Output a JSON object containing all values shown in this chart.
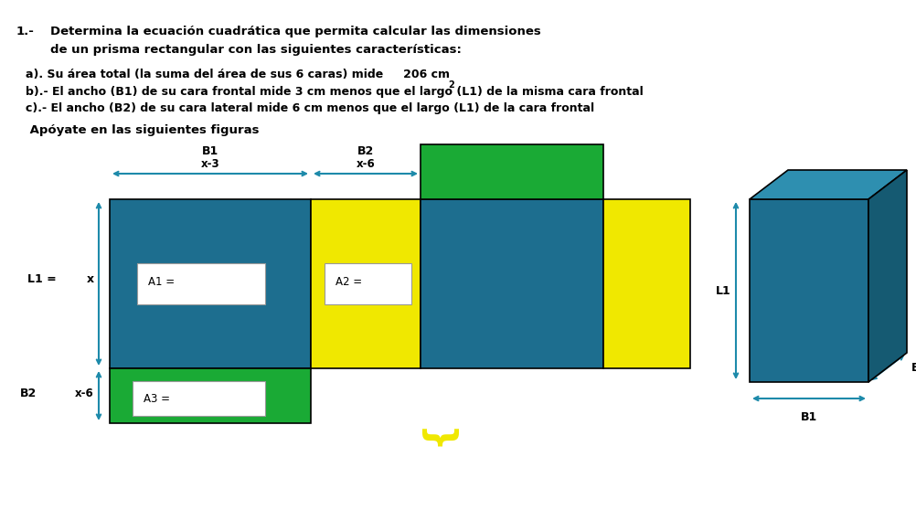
{
  "title_line1": "1.-    Determina la ecuación cuadrática que permita calcular las dimensiones",
  "title_line2": "        de un prisma rectangular con las siguientes características:",
  "line_a_main": "a). Su área total (la suma del área de sus 6 caras) mide     206 cm",
  "line_b": "b).- El ancho (B1) de su cara frontal mide 3 cm menos que el largo (L1) de la misma cara frontal",
  "line_c": "c).- El ancho (B2) de su cara lateral mide 6 cm menos que el largo (L1) de la cara frontal",
  "line_d": " Apóyate en las siguientes figuras",
  "color_teal": "#1d6e8f",
  "color_yellow": "#f0e800",
  "color_green": "#1aaa35",
  "color_white": "#ffffff",
  "color_black": "#000000",
  "bg_color": "#ffffff",
  "arrow_color": "#1d8aaa",
  "fig_width": 10.02,
  "fig_height": 5.58,
  "dpi": 100
}
